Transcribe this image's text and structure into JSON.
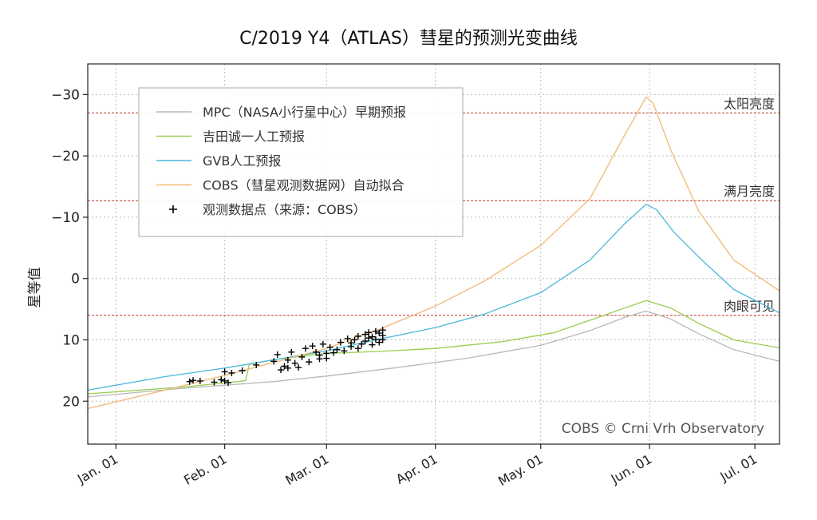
{
  "chart_data": {
    "type": "line",
    "title": "C/2019 Y4（ATLAS）彗星的预测光变曲线",
    "ylabel": "星等值",
    "xlabel": "",
    "ylim": [
      27,
      -35
    ],
    "y_inverted": true,
    "y_ticks": [
      -30,
      -20,
      -10,
      0,
      10,
      20
    ],
    "y_tick_labels": [
      "−30",
      "−20",
      "−10",
      "0",
      "10",
      "20"
    ],
    "x_range_days": [
      "2019-12-24",
      "2020-07-08"
    ],
    "x_ticks": [
      "2020-01-01",
      "2020-02-01",
      "2020-03-01",
      "2020-04-01",
      "2020-05-01",
      "2020-06-01",
      "2020-07-01"
    ],
    "x_tick_labels": [
      "Jan. 01",
      "Feb. 01",
      "Mar. 01",
      "Apr. 01",
      "May. 01",
      "Jun. 01",
      "Jul. 01"
    ],
    "grid": true,
    "legend_position": "top-left",
    "watermark": "COBS © Crni Vrh Observatory",
    "reference_lines": [
      {
        "label": "太阳亮度",
        "value": -27,
        "color": "#c0392b"
      },
      {
        "label": "满月亮度",
        "value": -12.7,
        "color": "#c0392b"
      },
      {
        "label": "肉眼可见",
        "value": 6,
        "color": "#c0392b"
      }
    ],
    "series": [
      {
        "name": "MPC（NASA小行星中心）早期预报",
        "color": "#b8b8b8",
        "points": [
          [
            "2019-12-24",
            19.3
          ],
          [
            "2020-01-20",
            17.9
          ],
          [
            "2020-02-15",
            16.8
          ],
          [
            "2020-03-01",
            15.9
          ],
          [
            "2020-03-20",
            14.6
          ],
          [
            "2020-04-10",
            13.0
          ],
          [
            "2020-05-01",
            10.9
          ],
          [
            "2020-05-15",
            8.5
          ],
          [
            "2020-05-25",
            6.3
          ],
          [
            "2020-05-31",
            5.3
          ],
          [
            "2020-06-07",
            6.6
          ],
          [
            "2020-06-15",
            9.0
          ],
          [
            "2020-06-25",
            11.6
          ],
          [
            "2020-07-08",
            13.5
          ]
        ]
      },
      {
        "name": "吉田诚一人工预报",
        "color": "#9acd4c",
        "points": [
          [
            "2019-12-24",
            18.8
          ],
          [
            "2020-01-20",
            17.7
          ],
          [
            "2020-02-05",
            16.8
          ],
          [
            "2020-02-07",
            16.6
          ],
          [
            "2020-02-08",
            14.0
          ],
          [
            "2020-02-15",
            13.2
          ],
          [
            "2020-03-01",
            12.2
          ],
          [
            "2020-03-15",
            11.9
          ],
          [
            "2020-04-01",
            11.4
          ],
          [
            "2020-04-20",
            10.3
          ],
          [
            "2020-05-05",
            8.8
          ],
          [
            "2020-05-20",
            5.8
          ],
          [
            "2020-05-31",
            3.6
          ],
          [
            "2020-06-07",
            4.8
          ],
          [
            "2020-06-15",
            7.3
          ],
          [
            "2020-06-25",
            10.0
          ],
          [
            "2020-07-08",
            11.3
          ]
        ]
      },
      {
        "name": "GVB人工预报",
        "color": "#4ab8d8",
        "points": [
          [
            "2019-12-24",
            18.2
          ],
          [
            "2020-01-15",
            16.0
          ],
          [
            "2020-02-01",
            14.6
          ],
          [
            "2020-03-01",
            11.8
          ],
          [
            "2020-03-15",
            10.0
          ],
          [
            "2020-04-01",
            8.0
          ],
          [
            "2020-04-15",
            5.8
          ],
          [
            "2020-05-01",
            2.3
          ],
          [
            "2020-05-15",
            -3.0
          ],
          [
            "2020-05-25",
            -9.0
          ],
          [
            "2020-05-31",
            -12.1
          ],
          [
            "2020-06-03",
            -11.2
          ],
          [
            "2020-06-08",
            -7.5
          ],
          [
            "2020-06-15",
            -3.5
          ],
          [
            "2020-06-25",
            1.8
          ],
          [
            "2020-07-08",
            5.6
          ]
        ]
      },
      {
        "name": "COBS（彗星观测数据网）自动拟合",
        "color": "#f2b773",
        "points": [
          [
            "2019-12-24",
            21.2
          ],
          [
            "2020-01-15",
            18.2
          ],
          [
            "2020-02-01",
            15.8
          ],
          [
            "2020-03-01",
            11.4
          ],
          [
            "2020-03-15",
            8.5
          ],
          [
            "2020-04-01",
            4.5
          ],
          [
            "2020-04-15",
            0.4
          ],
          [
            "2020-05-01",
            -5.4
          ],
          [
            "2020-05-15",
            -13.0
          ],
          [
            "2020-05-25",
            -23.5
          ],
          [
            "2020-05-31",
            -29.6
          ],
          [
            "2020-06-02",
            -28.6
          ],
          [
            "2020-06-07",
            -21.0
          ],
          [
            "2020-06-15",
            -11.0
          ],
          [
            "2020-06-25",
            -3.0
          ],
          [
            "2020-07-08",
            2.0
          ]
        ]
      }
    ],
    "observations": {
      "name": "观测数据点（来源：COBS）",
      "marker": "+",
      "color": "#000000",
      "points": [
        [
          "2020-01-22",
          16.8
        ],
        [
          "2020-01-23",
          16.6
        ],
        [
          "2020-01-25",
          16.7
        ],
        [
          "2020-01-29",
          16.9
        ],
        [
          "2020-01-31",
          16.5
        ],
        [
          "2020-02-01",
          16.7
        ],
        [
          "2020-02-01",
          15.2
        ],
        [
          "2020-02-02",
          17.0
        ],
        [
          "2020-02-03",
          15.4
        ],
        [
          "2020-02-06",
          15.0
        ],
        [
          "2020-02-10",
          14.1
        ],
        [
          "2020-02-15",
          13.5
        ],
        [
          "2020-02-16",
          12.4
        ],
        [
          "2020-02-17",
          14.9
        ],
        [
          "2020-02-18",
          14.3
        ],
        [
          "2020-02-19",
          13.3
        ],
        [
          "2020-02-19",
          14.6
        ],
        [
          "2020-02-20",
          12.0
        ],
        [
          "2020-02-21",
          13.8
        ],
        [
          "2020-02-22",
          14.5
        ],
        [
          "2020-02-23",
          12.8
        ],
        [
          "2020-02-24",
          11.4
        ],
        [
          "2020-02-25",
          13.6
        ],
        [
          "2020-02-26",
          11.0
        ],
        [
          "2020-02-27",
          12.0
        ],
        [
          "2020-02-28",
          12.5
        ],
        [
          "2020-02-28",
          13.1
        ],
        [
          "2020-02-29",
          10.7
        ],
        [
          "2020-03-01",
          12.2
        ],
        [
          "2020-03-01",
          13.0
        ],
        [
          "2020-03-02",
          11.2
        ],
        [
          "2020-03-03",
          12.1
        ],
        [
          "2020-03-04",
          11.6
        ],
        [
          "2020-03-05",
          10.4
        ],
        [
          "2020-03-06",
          11.8
        ],
        [
          "2020-03-07",
          9.8
        ],
        [
          "2020-03-08",
          11.1
        ],
        [
          "2020-03-08",
          10.5
        ],
        [
          "2020-03-09",
          10.0
        ],
        [
          "2020-03-10",
          11.4
        ],
        [
          "2020-03-10",
          9.4
        ],
        [
          "2020-03-11",
          10.7
        ],
        [
          "2020-03-12",
          9.1
        ],
        [
          "2020-03-12",
          10.2
        ],
        [
          "2020-03-13",
          9.7
        ],
        [
          "2020-03-13",
          8.8
        ],
        [
          "2020-03-14",
          9.5
        ],
        [
          "2020-03-14",
          10.8
        ],
        [
          "2020-03-15",
          8.6
        ],
        [
          "2020-03-15",
          9.9
        ],
        [
          "2020-03-16",
          8.9
        ],
        [
          "2020-03-16",
          10.4
        ],
        [
          "2020-03-17",
          8.4
        ],
        [
          "2020-03-17",
          9.3
        ],
        [
          "2020-03-17",
          10.0
        ]
      ]
    }
  }
}
